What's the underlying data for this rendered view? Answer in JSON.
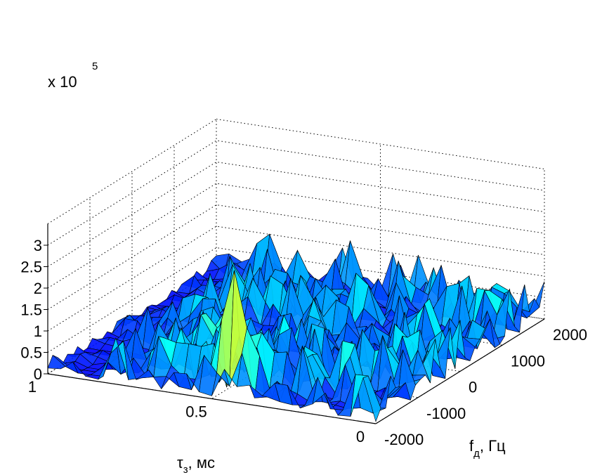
{
  "chart_data": {
    "type": "surface",
    "title": "",
    "z_multiplier_label": "x 10",
    "z_multiplier_exponent": "5",
    "xlabel": "f",
    "xlabel_sub": "д",
    "xlabel_unit": ", Гц",
    "ylabel": "τ",
    "ylabel_sub": "з",
    "ylabel_unit": ", мс",
    "xlim": [
      -2000,
      2000
    ],
    "ylim": [
      0,
      1
    ],
    "zlim": [
      0,
      3.5
    ],
    "x_ticks": [
      {
        "value": -2000,
        "label": "-2000"
      },
      {
        "value": -1000,
        "label": "-1000"
      },
      {
        "value": 0,
        "label": "0"
      },
      {
        "value": 1000,
        "label": "1000"
      },
      {
        "value": 2000,
        "label": "2000"
      }
    ],
    "y_ticks": [
      {
        "value": 0,
        "label": "0"
      },
      {
        "value": 0.5,
        "label": "0.5"
      },
      {
        "value": 1,
        "label": "1"
      }
    ],
    "z_ticks": [
      {
        "value": 0,
        "label": "0"
      },
      {
        "value": 0.5,
        "label": "0.5"
      },
      {
        "value": 1,
        "label": "1"
      },
      {
        "value": 1.5,
        "label": "1.5"
      },
      {
        "value": 2,
        "label": "2"
      },
      {
        "value": 2.5,
        "label": "2.5"
      },
      {
        "value": 3,
        "label": "3"
      }
    ],
    "peak": {
      "x": -1800,
      "y": 0.45,
      "z": 2.9
    },
    "grid": true,
    "colormap": "jet"
  }
}
